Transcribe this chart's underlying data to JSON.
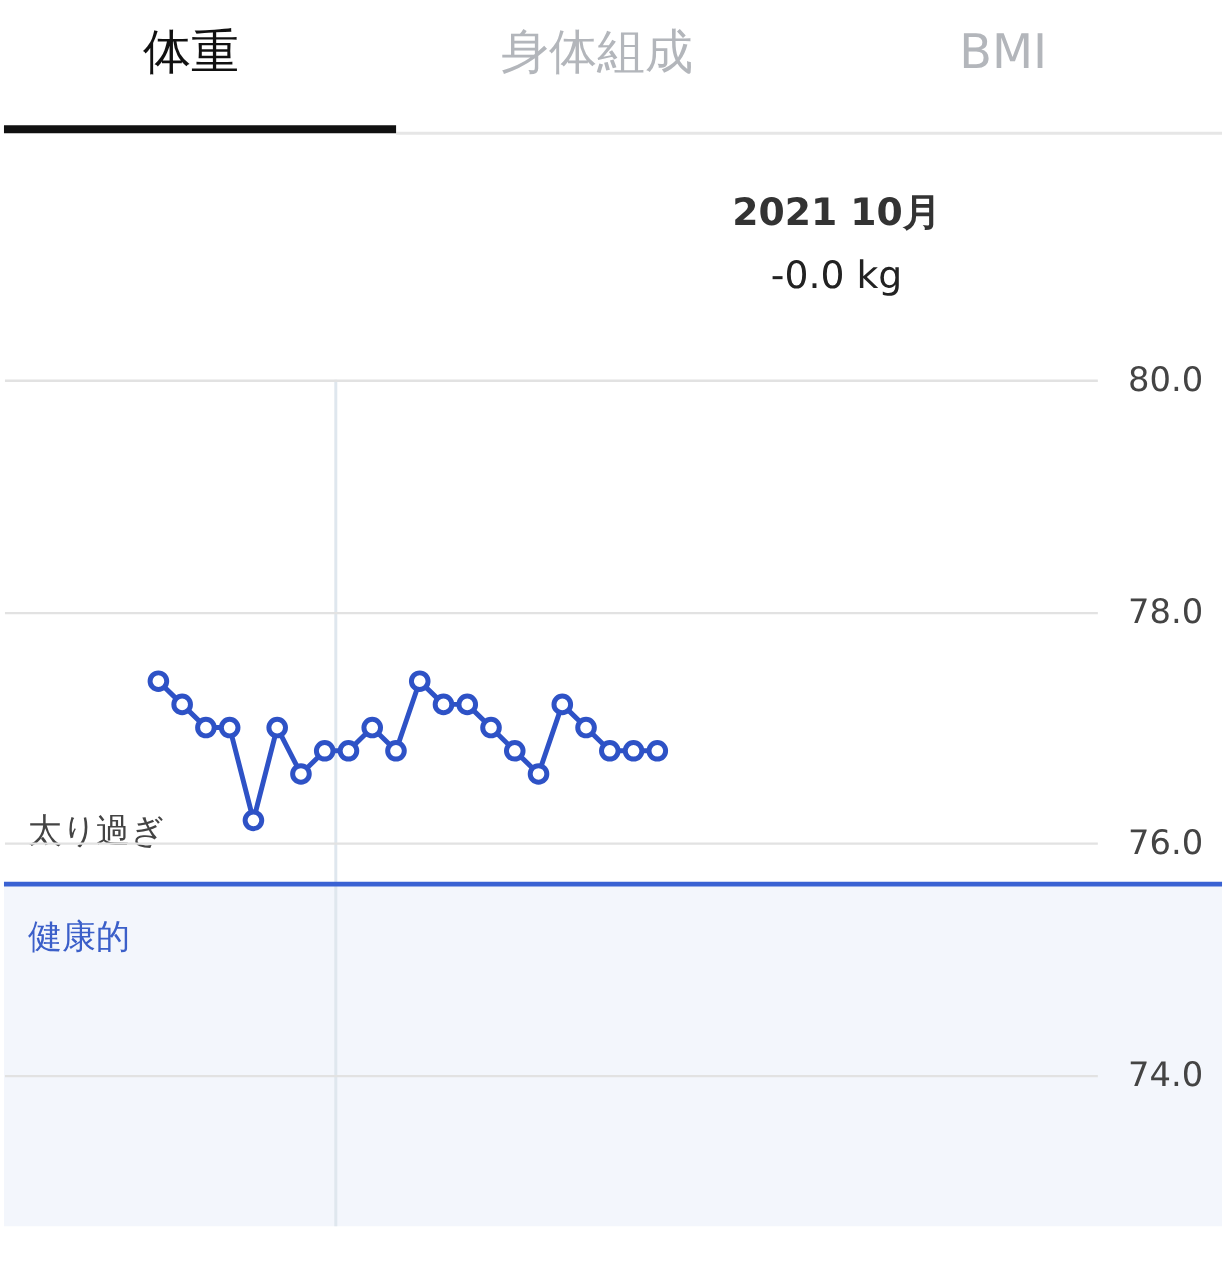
{
  "chart_data": {
    "type": "line",
    "title": "2021 10月",
    "subtitle": "-0.0 kg",
    "annotations": [
      "体重",
      "身体組成",
      "BMI"
    ],
    "categories": [
      null,
      null,
      null,
      null,
      null,
      null,
      null,
      null,
      null,
      null,
      null,
      null,
      null,
      null,
      null,
      null,
      null,
      null,
      null,
      null,
      null,
      null,
      null,
      null,
      null,
      null,
      null,
      null,
      null,
      null,
      null,
      null,
      null,
      null,
      null,
      null,
      null,
      null,
      null,
      null,
      null,
      null,
      null,
      null,
      null,
      null
    ],
    "values": [
      null,
      null,
      null,
      null,
      null,
      null,
      77.4,
      77.2,
      77.0,
      77.0,
      76.2,
      77.0,
      76.6,
      76.8,
      76.8,
      77.0,
      76.8,
      77.4,
      77.2,
      77.2,
      77.0,
      76.8,
      76.6,
      77.2,
      77.0,
      76.8,
      76.8,
      76.8,
      null,
      null,
      null,
      null,
      null,
      null,
      null,
      null,
      null,
      null,
      null,
      null,
      null,
      null,
      null,
      null,
      null,
      null
    ],
    "color": "#2e52c6",
    "ylim": [
      72.7,
      80.0
    ],
    "yticks": [
      {
        "value": 74,
        "label": "74.0"
      },
      {
        "value": 76,
        "label": "76.0"
      },
      {
        "value": 78,
        "label": "78.0"
      },
      {
        "value": 80,
        "label": "80.0"
      }
    ],
    "grid": "y",
    "tick_labels": "y",
    "marker": "circle",
    "line_style": "solid",
    "ref_lines": [
      {
        "axis": "y",
        "value": 75.65,
        "label": "太り過ぎ",
        "color": "#3a62d3"
      }
    ],
    "bands": [
      {
        "axis": "y",
        "from": 72.7,
        "to": 75.65,
        "label": "健康的",
        "color": "#f3f6fc"
      }
    ]
  }
}
